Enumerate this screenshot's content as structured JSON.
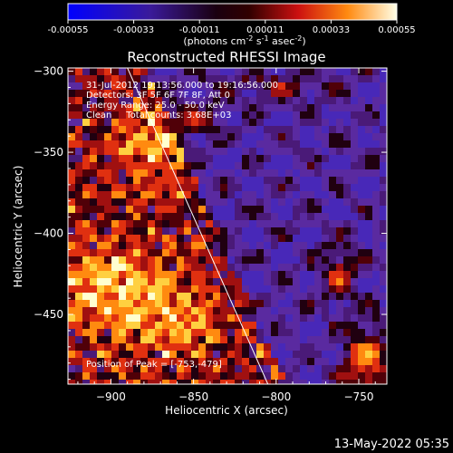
{
  "colorbar": {
    "tick_labels": [
      "-0.00055",
      "-0.00033",
      "-0.00011",
      "0.00011",
      "0.00033",
      "0.00055"
    ],
    "range": [
      -0.00055,
      0.00055
    ],
    "unit_prefix": "(photons cm",
    "unit_exp1": "-2",
    "unit_mid": " s",
    "unit_exp2": "-1",
    "unit_suffix": " asec",
    "unit_exp3": "-2",
    "unit_close": ")"
  },
  "chart_data": {
    "type": "heatmap",
    "title": "Reconstructed RHESSI Image",
    "xlabel": "Heliocentric X (arcsec)",
    "ylabel": "Heliocentric Y (arcsec)",
    "xlim": [
      -926,
      -733
    ],
    "ylim": [
      -493,
      -298
    ],
    "xticks": [
      -900,
      -850,
      -800,
      -750
    ],
    "yticks": [
      -300,
      -350,
      -400,
      -450
    ],
    "annotations": [
      "31-Jul-2012 19:13:56.000 to 19:16:56.000",
      "Detectors: 3F 5F 6F 7F 8F, Att 0",
      "Energy Range: 25.0 - 50.0 keV",
      "Clean     Total counts: 3.68E+03"
    ],
    "peak_label": "Position of Peak = [-753,-479]",
    "peak": [
      -753,
      -479
    ],
    "limb_line": {
      "from": [
        -890,
        -298
      ],
      "to": [
        -805,
        -493
      ]
    }
  },
  "footer": {
    "timestamp": "13-May-2022 05:35"
  }
}
